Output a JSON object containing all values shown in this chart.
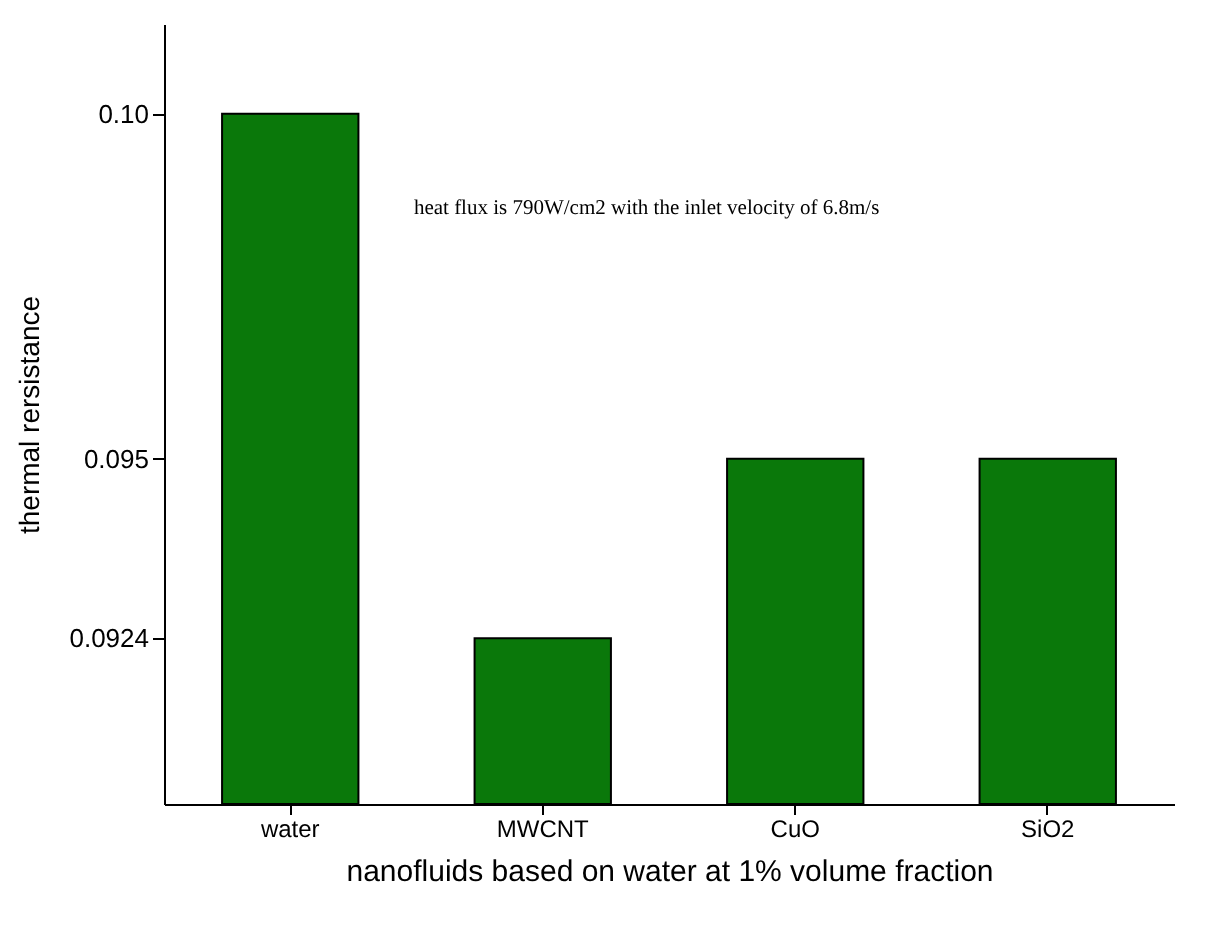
{
  "chart_data": {
    "type": "bar",
    "xlabel": "nanofluids based on water at 1% volume fraction",
    "ylabel": "thermal rersistance",
    "categories": [
      "water",
      "MWCNT",
      "CuO",
      "SiO2"
    ],
    "values": [
      0.1,
      0.0924,
      0.095,
      0.095
    ],
    "color": "#0a780a",
    "ylim": [
      0.09,
      0.1013
    ],
    "yticks": [
      {
        "value": 0.0924,
        "label": "0.0924"
      },
      {
        "value": 0.095,
        "label": "0.095"
      },
      {
        "value": 0.1,
        "label": "0.10"
      }
    ],
    "annotations": [
      "heat flux is 790W/cm2 with the inlet velocity of 6.8m/s"
    ]
  }
}
